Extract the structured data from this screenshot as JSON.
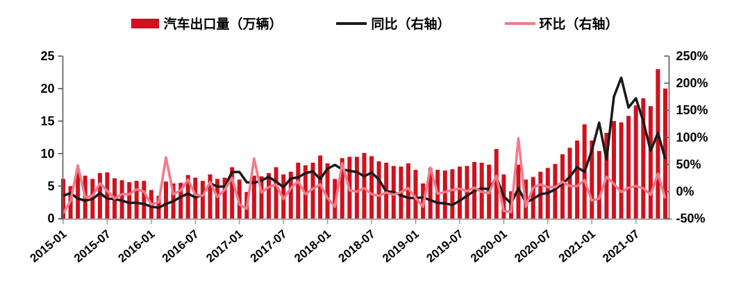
{
  "legend": [
    {
      "label": "汽车出口量（万辆）",
      "type": "bar",
      "color": "#D0111E"
    },
    {
      "label": "同比（右轴）",
      "type": "line",
      "color": "#1A1A1A"
    },
    {
      "label": "环比（右轴）",
      "type": "line",
      "color": "#F4798A"
    }
  ],
  "chart_data": {
    "type": "combo-bar-line",
    "title": "",
    "bar_series_name": "汽车出口量（万辆）",
    "yoy_series_name": "同比（右轴）",
    "mom_series_name": "环比（右轴）",
    "left_axis": {
      "min": 0,
      "max": 25,
      "tick_labels": [
        "0",
        "5",
        "10",
        "15",
        "20",
        "25"
      ]
    },
    "right_axis": {
      "min": -50,
      "max": 250,
      "tick_labels": [
        "-50%",
        "0%",
        "50%",
        "100%",
        "150%",
        "200%",
        "250%"
      ]
    },
    "x_tick_labels": [
      "2015-01",
      "2015-07",
      "2016-01",
      "2016-07",
      "2017-01",
      "2017-07",
      "2018-01",
      "2018-07",
      "2019-01",
      "2019-07",
      "2020-01",
      "2020-07",
      "2021-01",
      "2021-07"
    ],
    "grid": false,
    "legend_position": "top",
    "colors": {
      "bar": "#D0111E",
      "yoy": "#1A1A1A",
      "mom": "#F4798A",
      "axis": "#595959",
      "x_axis": "#9e9e9e"
    },
    "months": [
      "2015-01",
      "2015-02",
      "2015-03",
      "2015-04",
      "2015-05",
      "2015-06",
      "2015-07",
      "2015-08",
      "2015-09",
      "2015-10",
      "2015-11",
      "2015-12",
      "2016-01",
      "2016-02",
      "2016-03",
      "2016-04",
      "2016-05",
      "2016-06",
      "2016-07",
      "2016-08",
      "2016-09",
      "2016-10",
      "2016-11",
      "2016-12",
      "2017-01",
      "2017-02",
      "2017-03",
      "2017-04",
      "2017-05",
      "2017-06",
      "2017-07",
      "2017-08",
      "2017-09",
      "2017-10",
      "2017-11",
      "2017-12",
      "2018-01",
      "2018-02",
      "2018-03",
      "2018-04",
      "2018-05",
      "2018-06",
      "2018-07",
      "2018-08",
      "2018-09",
      "2018-10",
      "2018-11",
      "2018-12",
      "2019-01",
      "2019-02",
      "2019-03",
      "2019-04",
      "2019-05",
      "2019-06",
      "2019-07",
      "2019-08",
      "2019-09",
      "2019-10",
      "2019-11",
      "2019-12",
      "2020-01",
      "2020-02",
      "2020-03",
      "2020-04",
      "2020-05",
      "2020-06",
      "2020-07",
      "2020-08",
      "2020-09",
      "2020-10",
      "2020-11",
      "2020-12",
      "2021-01",
      "2021-02",
      "2021-03",
      "2021-04",
      "2021-05",
      "2021-06",
      "2021-07",
      "2021-08",
      "2021-09",
      "2021-10",
      "2021-11"
    ],
    "exports": [
      6.1,
      5.0,
      7.4,
      6.6,
      6.1,
      7.0,
      7.1,
      6.2,
      5.9,
      5.6,
      5.8,
      5.8,
      4.4,
      3.5,
      5.7,
      5.4,
      5.5,
      6.7,
      6.3,
      5.8,
      6.8,
      6.1,
      6.3,
      7.9,
      6.0,
      4.1,
      6.6,
      6.5,
      7.0,
      7.9,
      6.8,
      7.2,
      8.6,
      8.2,
      8.6,
      9.7,
      8.5,
      6.1,
      9.3,
      9.5,
      9.5,
      10.1,
      9.6,
      8.8,
      8.6,
      8.1,
      8.0,
      8.5,
      7.5,
      5.4,
      7.8,
      7.5,
      7.4,
      7.6,
      8.0,
      8.1,
      8.7,
      8.6,
      8.3,
      10.7,
      6.8,
      4.2,
      8.3,
      6.0,
      6.4,
      7.2,
      7.8,
      8.4,
      9.9,
      10.9,
      12.0,
      14.5,
      12.0,
      10.4,
      13.2,
      15.0,
      14.8,
      15.8,
      17.4,
      18.5,
      17.3,
      23.0,
      20.0
    ],
    "yoy": [
      -8,
      -3,
      -13,
      -17,
      -14,
      -3,
      -13,
      -14,
      -17,
      -21,
      -21,
      -23,
      -28,
      -30,
      -23,
      -18,
      -10,
      -4,
      -11,
      -6,
      15,
      9,
      9,
      36,
      36,
      17,
      16,
      20,
      27,
      18,
      8,
      24,
      26,
      34,
      37,
      23,
      42,
      49,
      41,
      38,
      36,
      28,
      35,
      22,
      0,
      -1,
      -7,
      -12,
      -12,
      -11,
      -16,
      -21,
      -22,
      -25,
      -17,
      -8,
      1,
      6,
      4,
      26,
      -9,
      -22,
      6,
      -20,
      -14,
      -5,
      -3,
      4,
      14,
      27,
      45,
      36,
      76,
      127,
      59,
      175,
      210,
      155,
      172,
      130,
      75,
      108,
      60
    ],
    "mom": [
      -40,
      -18,
      48,
      -11,
      -8,
      15,
      1,
      -13,
      -5,
      -5,
      4,
      0,
      -24,
      -20,
      63,
      -5,
      2,
      22,
      -6,
      -8,
      17,
      -10,
      3,
      25,
      -24,
      -32,
      61,
      -2,
      8,
      13,
      -14,
      6,
      19,
      -5,
      5,
      13,
      -12,
      -28,
      52,
      2,
      0,
      6,
      -5,
      -8,
      -2,
      -6,
      -1,
      6,
      -12,
      -28,
      44,
      -4,
      -1,
      3,
      5,
      1,
      7,
      -1,
      -3,
      29,
      -36,
      -38,
      98,
      -28,
      7,
      13,
      8,
      8,
      18,
      10,
      10,
      21,
      -17,
      -13,
      27,
      14,
      -1,
      7,
      10,
      6,
      -6,
      33,
      -13
    ]
  }
}
